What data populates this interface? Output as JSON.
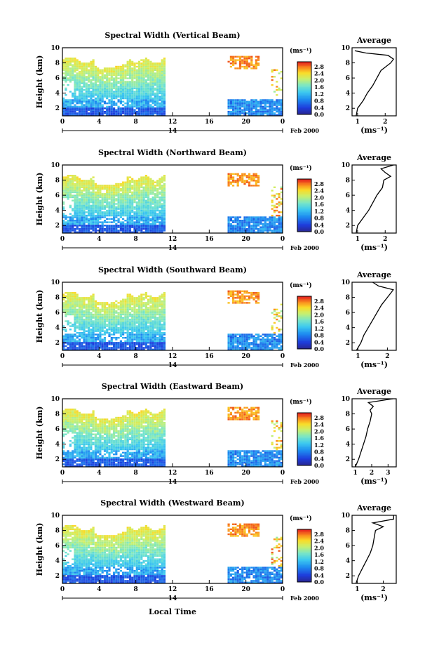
{
  "figure": {
    "xlabel": "Local Time",
    "ylabel": "Height (km)",
    "date_label": "Feb 2000",
    "day_label": "14",
    "colorbar_unit": "(ms⁻¹)",
    "colorbar_ticks": [
      "0.0",
      "0.4",
      "0.8",
      "1.2",
      "1.6",
      "2.0",
      "2.4",
      "2.8"
    ],
    "avg_title": "Average",
    "avg_xlabel": "(ms⁻¹)",
    "x_ticks": [
      "0",
      "4",
      "8",
      "12",
      "16",
      "20",
      "0"
    ],
    "y_ticks": [
      "2",
      "4",
      "6",
      "8",
      "10"
    ]
  },
  "chart_data": [
    {
      "type": "heatmap",
      "title": "Spectral Width (Vertical Beam)",
      "x_range": [
        0,
        24
      ],
      "y_range": [
        1,
        10
      ],
      "xlabel": "",
      "ylabel": "Height (km)",
      "colorbar_range": [
        0,
        3.0
      ],
      "avg_x_ticks": [
        "1",
        "2"
      ],
      "avg_x_range": [
        0.8,
        2.4
      ],
      "avg_profile": {
        "height": [
          1,
          2,
          3,
          4,
          5,
          6,
          7,
          8,
          8.5,
          9,
          9.3,
          9.6
        ],
        "value": [
          0.95,
          1.0,
          1.2,
          1.35,
          1.55,
          1.7,
          1.85,
          2.2,
          2.3,
          2.1,
          1.3,
          0.9
        ]
      }
    },
    {
      "type": "heatmap",
      "title": "Spectral Width (Northward Beam)",
      "x_range": [
        0,
        24
      ],
      "y_range": [
        1,
        10
      ],
      "xlabel": "",
      "ylabel": "Height (km)",
      "colorbar_range": [
        0,
        3.0
      ],
      "avg_x_ticks": [
        "1",
        "2"
      ],
      "avg_x_range": [
        0.8,
        2.4
      ],
      "avg_profile": {
        "height": [
          1,
          2,
          3,
          4,
          5,
          6,
          7,
          8,
          8.5,
          9,
          9.5,
          10
        ],
        "value": [
          0.95,
          1.0,
          1.2,
          1.4,
          1.55,
          1.7,
          1.9,
          1.95,
          2.2,
          2.0,
          1.85,
          2.3
        ]
      }
    },
    {
      "type": "heatmap",
      "title": "Spectral Width (Southward Beam)",
      "x_range": [
        0,
        24
      ],
      "y_range": [
        1,
        10
      ],
      "xlabel": "",
      "ylabel": "Height (km)",
      "colorbar_range": [
        0,
        3.0
      ],
      "avg_x_ticks": [
        "1",
        "2"
      ],
      "avg_x_range": [
        0.8,
        2.3
      ],
      "avg_profile": {
        "height": [
          1,
          2,
          3,
          4,
          5,
          6,
          7,
          8,
          9,
          9.5,
          10
        ],
        "value": [
          0.95,
          1.1,
          1.2,
          1.35,
          1.5,
          1.65,
          1.8,
          2.0,
          2.2,
          1.7,
          1.5
        ]
      }
    },
    {
      "type": "heatmap",
      "title": "Spectral Width (Eastward Beam)",
      "x_range": [
        0,
        24
      ],
      "y_range": [
        1,
        10
      ],
      "xlabel": "",
      "ylabel": "Height (km)",
      "colorbar_range": [
        0,
        3.0
      ],
      "avg_x_ticks": [
        "1",
        "2",
        "3"
      ],
      "avg_x_range": [
        0.8,
        3.5
      ],
      "avg_profile": {
        "height": [
          1,
          2,
          3,
          4,
          5,
          6,
          7,
          8,
          8.5,
          9,
          9.5,
          10
        ],
        "value": [
          1.0,
          1.2,
          1.35,
          1.5,
          1.65,
          1.75,
          1.9,
          2.0,
          1.9,
          2.1,
          1.8,
          3.3
        ]
      }
    },
    {
      "type": "heatmap",
      "title": "Spectral Width (Westward Beam)",
      "x_range": [
        0,
        24
      ],
      "y_range": [
        1,
        10
      ],
      "xlabel": "Local Time",
      "ylabel": "Height (km)",
      "colorbar_range": [
        0,
        3.0
      ],
      "avg_x_ticks": [
        "1",
        "2"
      ],
      "avg_x_range": [
        0.8,
        2.5
      ],
      "avg_profile": {
        "height": [
          1,
          2,
          3,
          4,
          5,
          6,
          7,
          8,
          8.5,
          9,
          9.5,
          10
        ],
        "value": [
          0.95,
          1.05,
          1.2,
          1.35,
          1.5,
          1.6,
          1.65,
          1.7,
          2.0,
          1.6,
          2.4,
          2.4
        ]
      }
    }
  ]
}
